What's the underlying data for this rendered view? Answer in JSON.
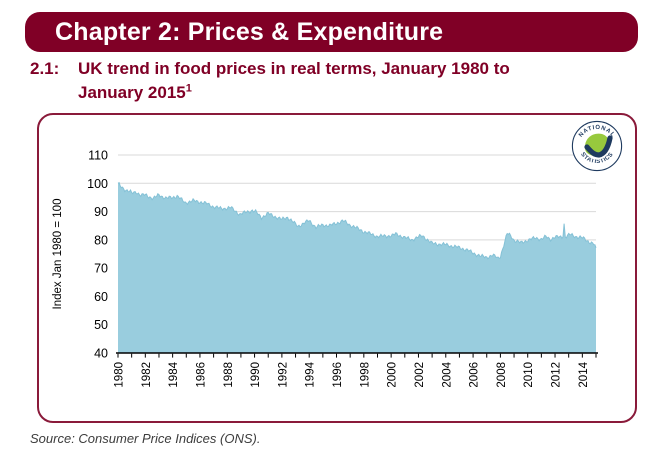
{
  "page": {
    "chapter_title": "Chapter 2: Prices & Expenditure",
    "figure_number": "2.1:",
    "figure_title_line1": "UK trend in food prices in real terms, January 1980 to",
    "figure_title_line2": "January 2015",
    "figure_title_superscript": "1",
    "source": "Source: Consumer Price Indices (ONS)."
  },
  "logo": {
    "top_text": "NATIONAL",
    "bottom_text": "STATISTICS"
  },
  "colors": {
    "maroon": "#800026",
    "panel_border": "#8a1a3a",
    "area_fill": "#99cdde",
    "area_edge": "#84c1d6",
    "gridline": "#d9d9d9",
    "axis": "#000000",
    "logo_navy": "#1e3a5f",
    "logo_green": "#97c93d"
  },
  "chart_data": {
    "type": "area",
    "title": "UK trend in food prices in real terms, January 1980 to January 2015",
    "xlabel": "",
    "ylabel": "Index Jan 1980 = 100",
    "ylim": [
      40,
      110
    ],
    "y_ticks": [
      40,
      50,
      60,
      70,
      80,
      90,
      100,
      110
    ],
    "x_range": [
      1980,
      2015
    ],
    "x_tick_years": [
      1980,
      1981,
      1982,
      1983,
      1984,
      1985,
      1986,
      1987,
      1988,
      1989,
      1990,
      1991,
      1992,
      1993,
      1994,
      1995,
      1996,
      1997,
      1998,
      1999,
      2000,
      2001,
      2002,
      2003,
      2004,
      2005,
      2006,
      2007,
      2008,
      2009,
      2010,
      2011,
      2012,
      2013,
      2014,
      2015
    ],
    "x_tick_labels": [
      "1980",
      "1982",
      "1984",
      "1986",
      "1988",
      "1990",
      "1992",
      "1994",
      "1996",
      "1998",
      "2000",
      "2002",
      "2004",
      "2006",
      "2008",
      "2010",
      "2012",
      "2014"
    ],
    "grid": true,
    "legend": "none",
    "fill_color": "#99cdde",
    "series": [
      {
        "name": "UK food prices in real terms (monthly index, Jan 1980 = 100)",
        "points": [
          [
            1980.0,
            100
          ],
          [
            1980.17,
            99.0
          ],
          [
            1980.5,
            97.8
          ],
          [
            1980.92,
            96.9
          ],
          [
            1981.0,
            96.4
          ],
          [
            1981.33,
            97.0
          ],
          [
            1981.67,
            95.7
          ],
          [
            1982.0,
            95.9
          ],
          [
            1982.58,
            94.6
          ],
          [
            1983.0,
            95.9
          ],
          [
            1983.5,
            94.7
          ],
          [
            1984.0,
            95.0
          ],
          [
            1984.33,
            95.5
          ],
          [
            1984.92,
            93.1
          ],
          [
            1985.5,
            93.8
          ],
          [
            1986.0,
            93.4
          ],
          [
            1986.5,
            92.8
          ],
          [
            1987.0,
            91.7
          ],
          [
            1987.58,
            91.0
          ],
          [
            1988.25,
            91.4
          ],
          [
            1988.92,
            89.0
          ],
          [
            1989.33,
            89.7
          ],
          [
            1989.83,
            90.4
          ],
          [
            1990.08,
            89.9
          ],
          [
            1990.5,
            87.9
          ],
          [
            1991.0,
            89.3
          ],
          [
            1991.5,
            88.2
          ],
          [
            1992.0,
            87.2
          ],
          [
            1992.42,
            88.0
          ],
          [
            1993.17,
            84.8
          ],
          [
            1994.0,
            86.8
          ],
          [
            1994.5,
            84.4
          ],
          [
            1995.0,
            85.3
          ],
          [
            1995.5,
            85.0
          ],
          [
            1996.0,
            85.9
          ],
          [
            1996.5,
            86.7
          ],
          [
            1997.0,
            85.2
          ],
          [
            1997.58,
            83.9
          ],
          [
            1998.0,
            82.9
          ],
          [
            1999.0,
            81.2
          ],
          [
            2000.08,
            81.5
          ],
          [
            2000.33,
            82.1
          ],
          [
            2001.0,
            80.8
          ],
          [
            2001.5,
            80.0
          ],
          [
            2002.08,
            81.2
          ],
          [
            2002.33,
            81.3
          ],
          [
            2003.0,
            78.7
          ],
          [
            2004.0,
            78.3
          ],
          [
            2005.0,
            77.2
          ],
          [
            2005.58,
            76.4
          ],
          [
            2006.0,
            75.3
          ],
          [
            2006.58,
            74.2
          ],
          [
            2007.0,
            73.8
          ],
          [
            2007.42,
            74.6
          ],
          [
            2007.83,
            73.5
          ],
          [
            2008.0,
            74.2
          ],
          [
            2008.5,
            82.2
          ],
          [
            2008.75,
            81.5
          ],
          [
            2009.0,
            79.9
          ],
          [
            2009.5,
            78.9
          ],
          [
            2010.0,
            79.9
          ],
          [
            2010.58,
            80.7
          ],
          [
            2011.0,
            80.2
          ],
          [
            2011.33,
            81.1
          ],
          [
            2011.67,
            80.2
          ],
          [
            2012.0,
            81.0
          ],
          [
            2012.58,
            80.9
          ],
          [
            2012.67,
            85.9
          ],
          [
            2012.75,
            81.0
          ],
          [
            2013.08,
            81.9
          ],
          [
            2013.5,
            81.2
          ],
          [
            2014.0,
            80.7
          ],
          [
            2014.5,
            79.3
          ],
          [
            2014.83,
            78.6
          ],
          [
            2015.0,
            77.2
          ]
        ]
      }
    ],
    "annotations": [
      {
        "x": 2012.67,
        "value": 85.9,
        "note": "single-month spike"
      }
    ]
  }
}
